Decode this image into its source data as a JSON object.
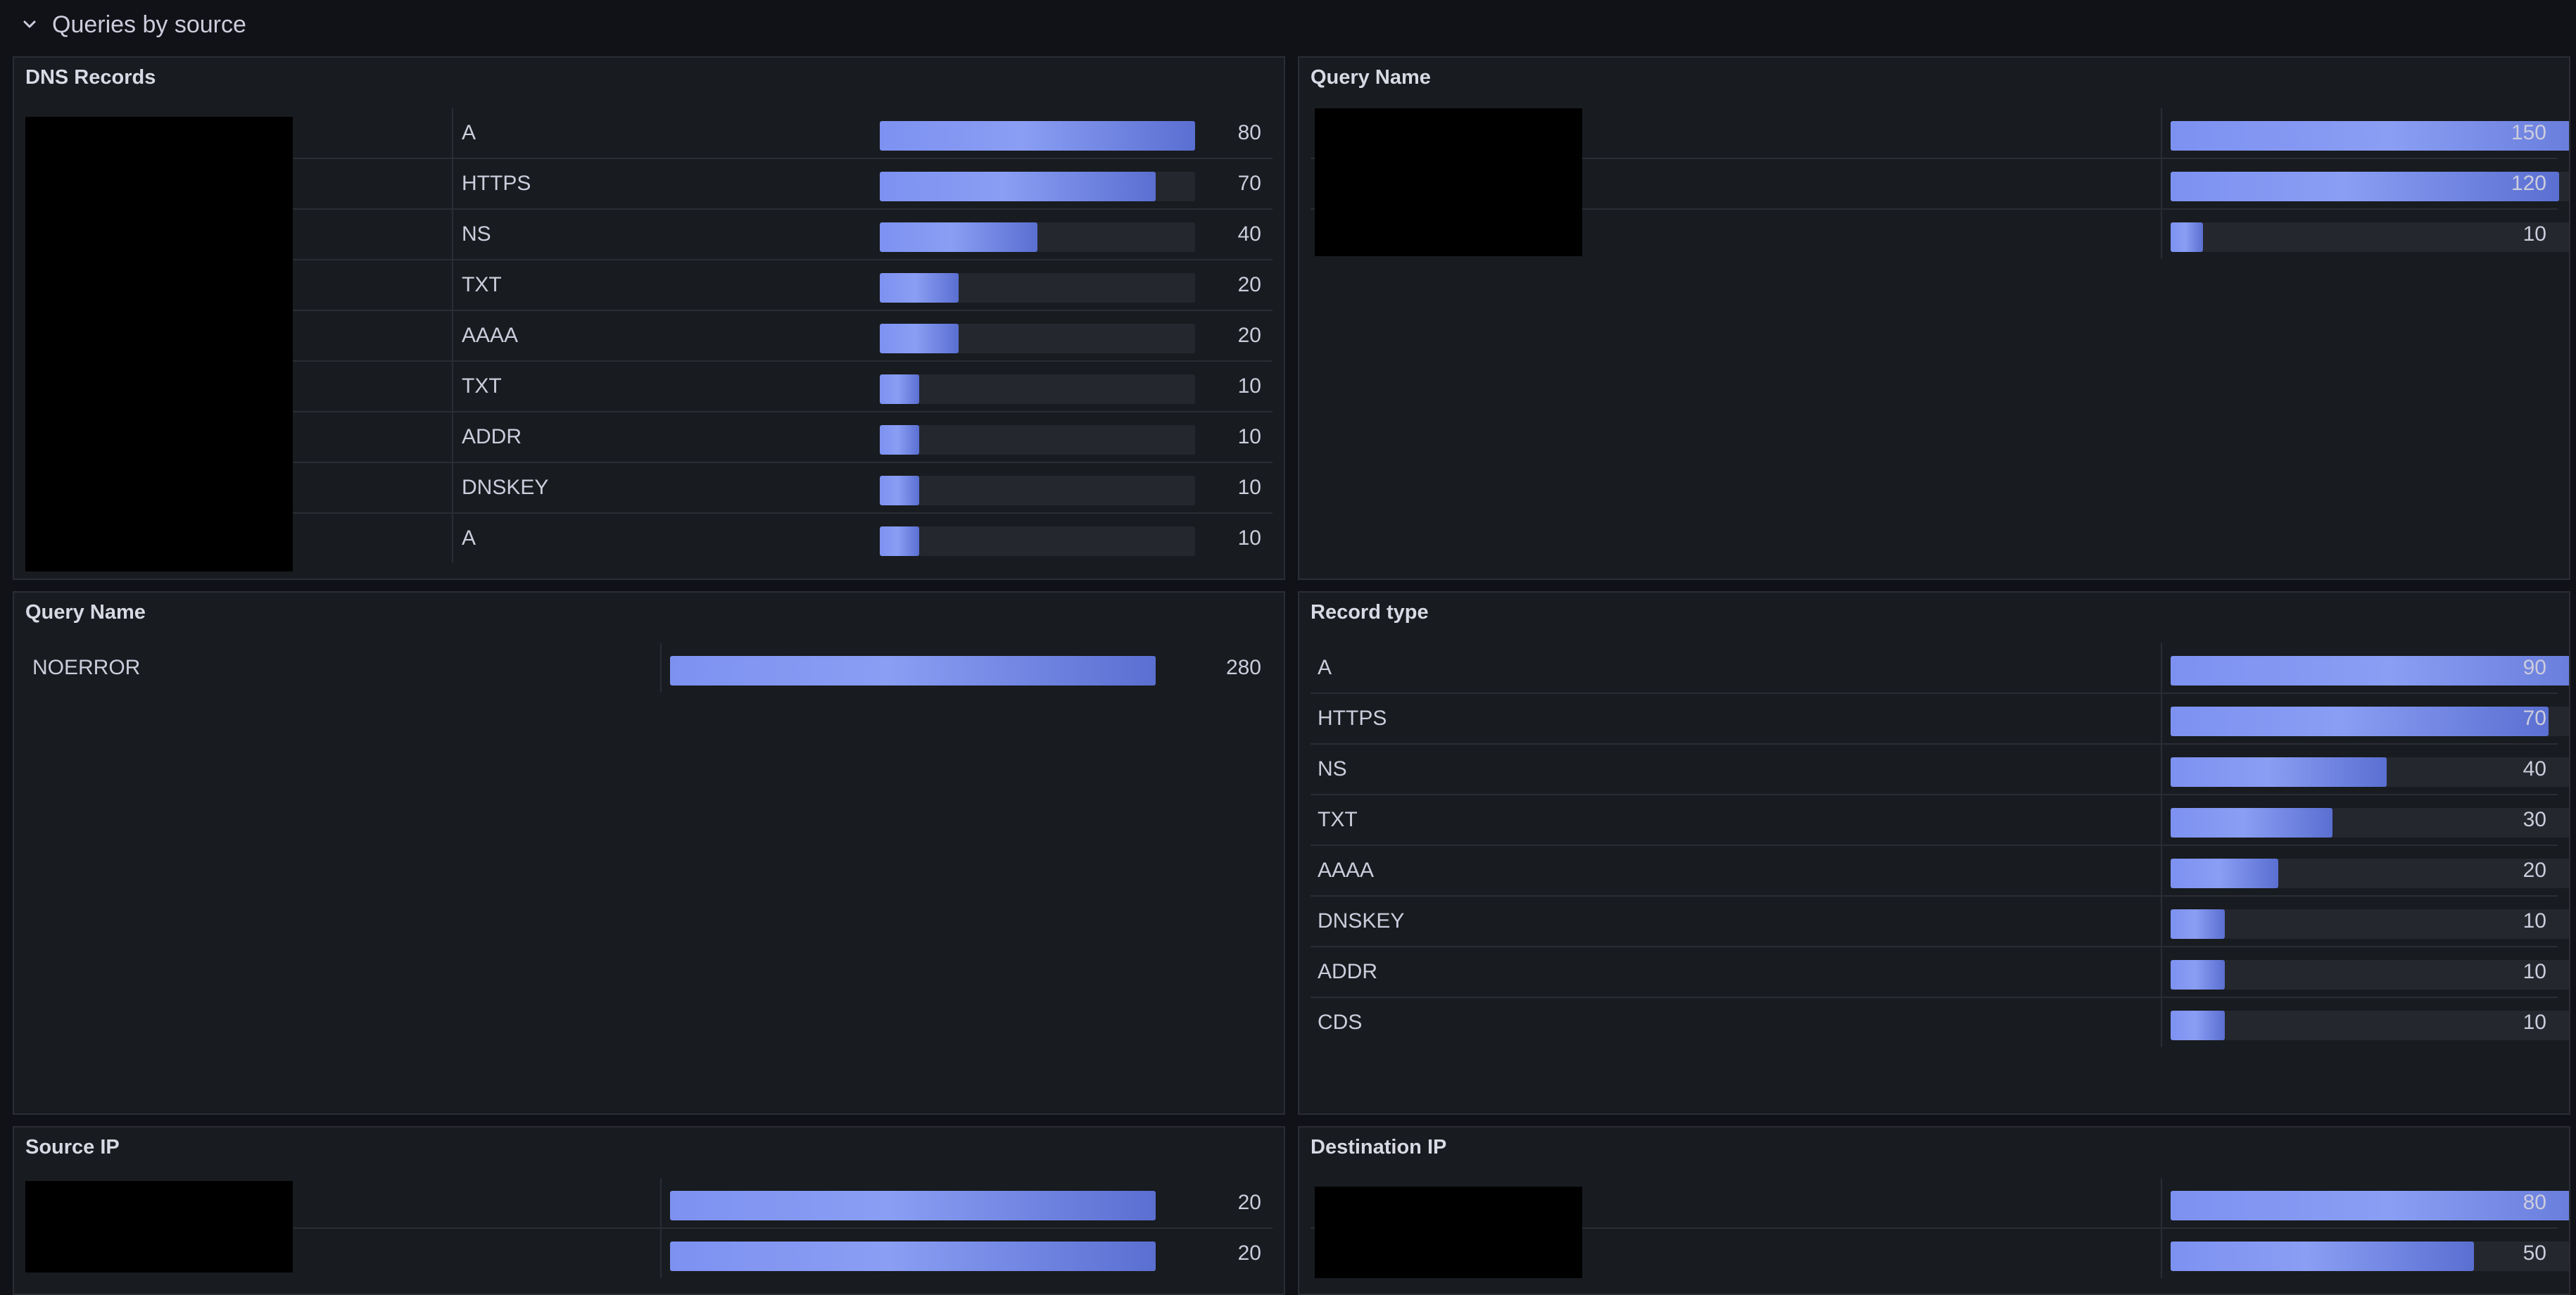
{
  "row": {
    "title": "Queries by source",
    "collapse_icon": "chevron-down-icon"
  },
  "colors": {
    "bar_start": "#7d91f1",
    "bar_end": "#5a6fd1",
    "panel_bg": "#181b1f",
    "page_bg": "#111217"
  },
  "panels": {
    "dns_records": {
      "title": "DNS Records",
      "max": 80,
      "rows": [
        {
          "label": "A",
          "value": 80
        },
        {
          "label": "HTTPS",
          "value": 70
        },
        {
          "label": "NS",
          "value": 40
        },
        {
          "label": "TXT",
          "value": 20
        },
        {
          "label": "AAAA",
          "value": 20
        },
        {
          "label": "TXT",
          "value": 10
        },
        {
          "label": "ADDR",
          "value": 10
        },
        {
          "label": "DNSKEY",
          "value": 10
        },
        {
          "label": "A",
          "value": 10
        }
      ]
    },
    "query_name_top": {
      "title": "Query Name",
      "max": 150,
      "rows": [
        {
          "label": "",
          "value": 150
        },
        {
          "label": "",
          "value": 120
        },
        {
          "label": "",
          "value": 10
        }
      ]
    },
    "query_name_mid": {
      "title": "Query Name",
      "max": 280,
      "rows": [
        {
          "label": "NOERROR",
          "value": 280
        }
      ]
    },
    "record_type": {
      "title": "Record type",
      "max": 90,
      "rows": [
        {
          "label": "A",
          "value": 90
        },
        {
          "label": "HTTPS",
          "value": 70
        },
        {
          "label": "NS",
          "value": 40
        },
        {
          "label": "TXT",
          "value": 30
        },
        {
          "label": "AAAA",
          "value": 20
        },
        {
          "label": "DNSKEY",
          "value": 10
        },
        {
          "label": "ADDR",
          "value": 10
        },
        {
          "label": "CDS",
          "value": 10
        }
      ]
    },
    "source_ip": {
      "title": "Source IP",
      "max": 20,
      "rows": [
        {
          "label": "",
          "value": 20
        },
        {
          "label": "",
          "value": 20
        }
      ]
    },
    "destination_ip": {
      "title": "Destination IP",
      "max": 80,
      "rows": [
        {
          "label": "",
          "value": 80
        },
        {
          "label": "",
          "value": 50
        }
      ]
    }
  }
}
